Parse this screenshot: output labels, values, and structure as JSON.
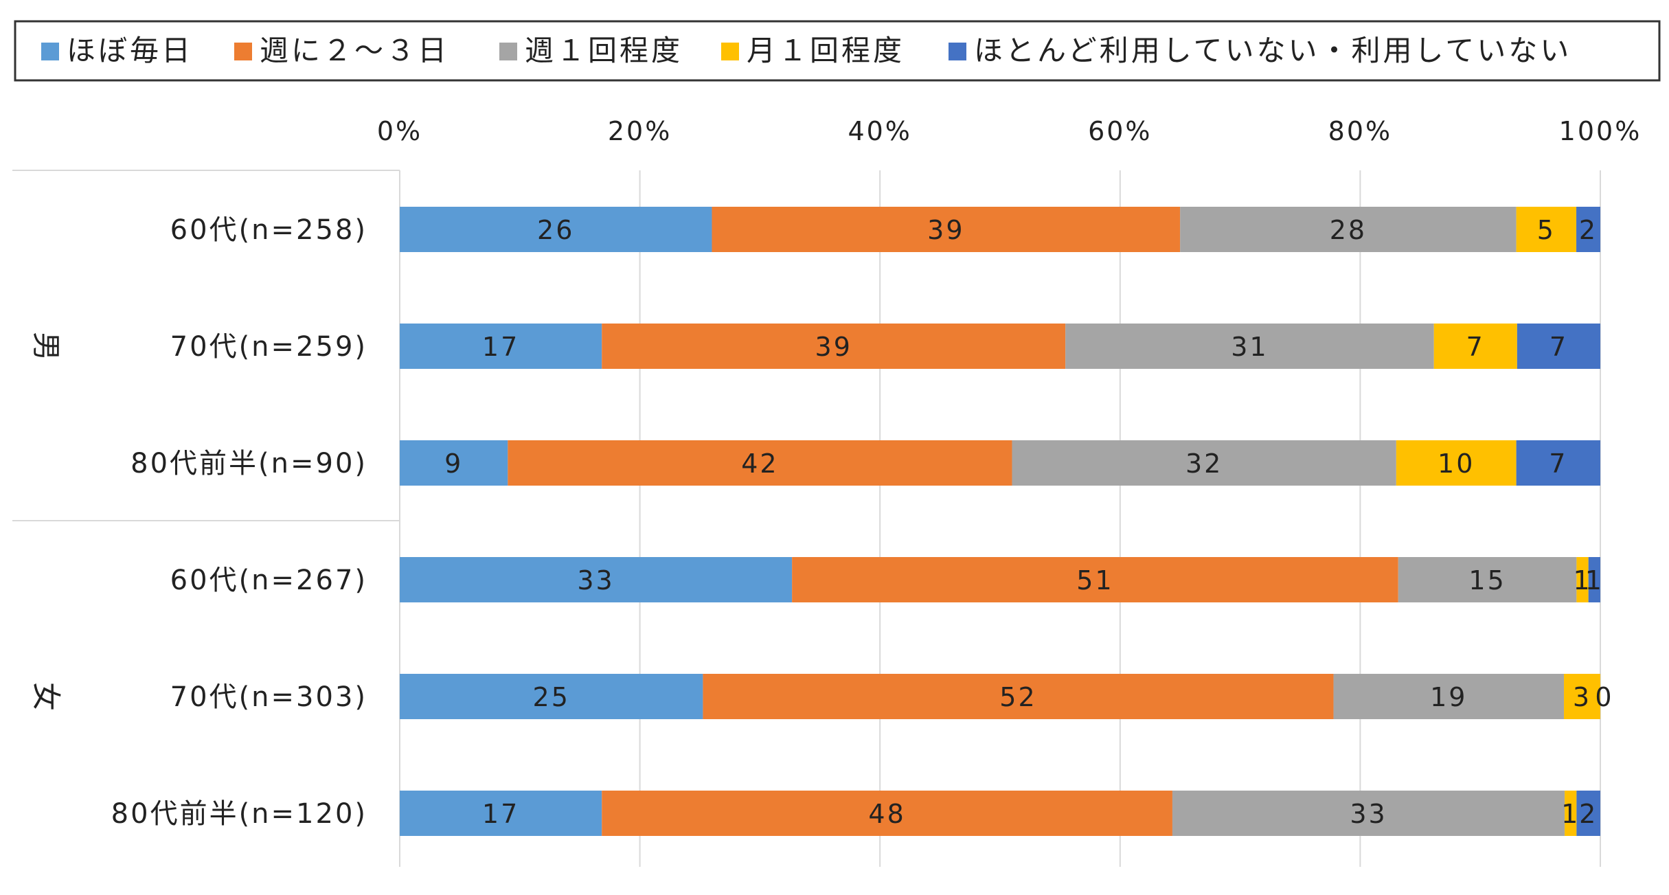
{
  "chart_data": {
    "type": "bar",
    "orientation": "horizontal",
    "stacked": "percent",
    "title": "",
    "xlabel": "",
    "ylabel": "",
    "xlim": [
      0,
      100
    ],
    "x_ticks": [
      "0%",
      "20%",
      "40%",
      "60%",
      "80%",
      "100%"
    ],
    "tick_position": "top",
    "grid": true,
    "legend_position": "top",
    "groups": [
      {
        "label": "男",
        "categories": [
          "60代(n=258)",
          "70代(n=259)",
          "80代前半(n=90)"
        ]
      },
      {
        "label": "女",
        "categories": [
          "60代(n=267)",
          "70代(n=303)",
          "80代前半(n=120)"
        ]
      }
    ],
    "categories": [
      "60代(n=258)",
      "70代(n=259)",
      "80代前半(n=90)",
      "60代(n=267)",
      "70代(n=303)",
      "80代前半(n=120)"
    ],
    "series": [
      {
        "name": "ほぼ毎日",
        "color": "#5B9BD5",
        "values": [
          26,
          17,
          9,
          33,
          25,
          17
        ]
      },
      {
        "name": "週に２～３日",
        "color": "#ED7D31",
        "values": [
          39,
          39,
          42,
          51,
          52,
          48
        ]
      },
      {
        "name": "週１回程度",
        "color": "#A5A5A5",
        "values": [
          28,
          31,
          32,
          15,
          19,
          33
        ]
      },
      {
        "name": "月１回程度",
        "color": "#FFC000",
        "values": [
          5,
          7,
          10,
          1,
          3,
          1
        ]
      },
      {
        "name": "ほとんど利用していない・利用していない",
        "color": "#4472C4",
        "values": [
          2,
          7,
          7,
          1,
          0,
          2
        ]
      }
    ]
  }
}
